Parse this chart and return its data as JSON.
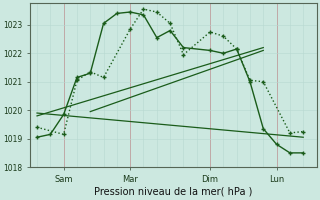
{
  "bg_color": "#cce8e0",
  "grid_color_major": "#aacccc",
  "grid_color_minor": "#bbdddd",
  "line_color": "#1a5c1a",
  "title": "Pression niveau de la mer( hPa )",
  "ylabel_ticks": [
    1018,
    1019,
    1020,
    1021,
    1022,
    1023
  ],
  "xtick_labels": [
    "Sam",
    "Mar",
    "Dim",
    "Lun"
  ],
  "xtick_positions": [
    2,
    7,
    13,
    18
  ],
  "series1_x": [
    0,
    2,
    3,
    4,
    5,
    7,
    8,
    9,
    10,
    11,
    13,
    14,
    15,
    16,
    17,
    19,
    20
  ],
  "series1_y": [
    1019.4,
    1019.15,
    1021.05,
    1021.35,
    1021.15,
    1022.85,
    1023.55,
    1023.45,
    1023.05,
    1021.95,
    1022.75,
    1022.6,
    1022.15,
    1021.05,
    1021.0,
    1019.2,
    1019.25
  ],
  "series2_x": [
    0,
    1,
    2,
    3,
    4,
    5,
    6,
    7,
    8,
    9,
    10,
    11,
    13,
    14,
    15,
    16,
    17,
    18,
    19,
    20
  ],
  "series2_y": [
    1019.05,
    1019.15,
    1019.85,
    1021.15,
    1021.3,
    1023.05,
    1023.4,
    1023.45,
    1023.35,
    1022.55,
    1022.8,
    1022.2,
    1022.1,
    1022.0,
    1022.15,
    1021.0,
    1019.35,
    1018.8,
    1018.5,
    1018.5
  ],
  "trend1_x": [
    0,
    17
  ],
  "trend1_y": [
    1019.8,
    1022.2
  ],
  "trend2_x": [
    0,
    20
  ],
  "trend2_y": [
    1019.9,
    1019.05
  ],
  "trend3_x": [
    4,
    17
  ],
  "trend3_y": [
    1019.95,
    1022.1
  ],
  "xlim": [
    -0.5,
    21
  ],
  "ylim": [
    1018.0,
    1023.75
  ]
}
